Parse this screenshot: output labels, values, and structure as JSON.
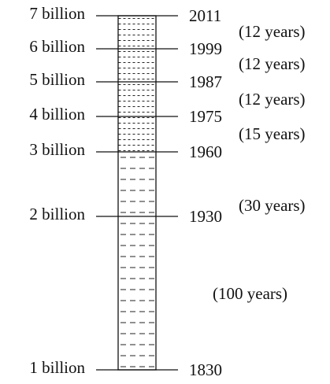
{
  "levels": [
    {
      "population": "7 billion",
      "year": "2011"
    },
    {
      "population": "6 billion",
      "year": "1999"
    },
    {
      "population": "5 billion",
      "year": "1987"
    },
    {
      "population": "4 billion",
      "year": "1975"
    },
    {
      "population": "3 billion",
      "year": "1960"
    },
    {
      "population": "2 billion",
      "year": "1930"
    },
    {
      "population": "1 billion",
      "year": "1830"
    }
  ],
  "intervals": [
    "(12 years)",
    "(12 years)",
    "(12 years)",
    "(15 years)",
    "(30 years)",
    "(100 years)"
  ]
}
